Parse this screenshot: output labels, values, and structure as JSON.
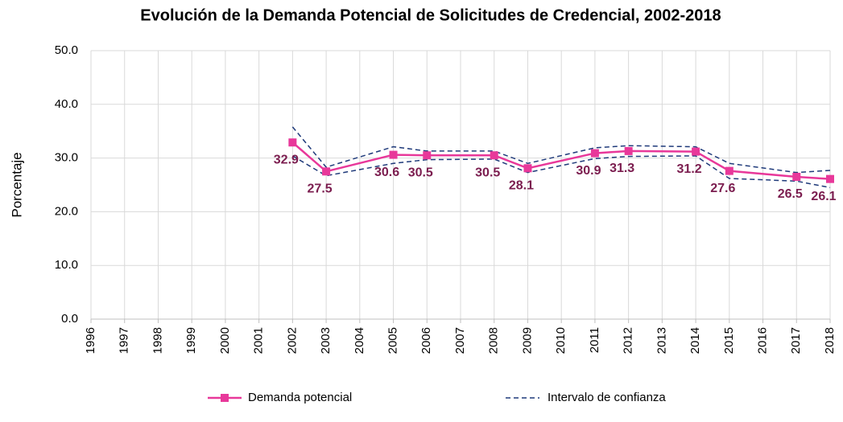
{
  "chart_data": {
    "type": "line",
    "title": "Evolución de la Demanda Potencial de Solicitudes de Credencial, 2002‐2018",
    "y_label": "Porcentaje",
    "x": [
      2002,
      2003,
      2005,
      2006,
      2008,
      2009,
      2011,
      2012,
      2014,
      2015,
      2017,
      2018
    ],
    "series": [
      {
        "name": "Demanda potencial",
        "color": "#e8389a",
        "values": [
          32.9,
          27.5,
          30.6,
          30.5,
          30.5,
          28.1,
          30.9,
          31.3,
          31.2,
          27.6,
          26.5,
          26.1
        ]
      }
    ],
    "confidence_interval": {
      "name": "Intervalo de confianza",
      "color": "#1f3a7a",
      "upper": [
        35.8,
        28.3,
        32.1,
        31.3,
        31.3,
        29.0,
        31.9,
        32.3,
        32.1,
        29.0,
        27.3,
        27.7
      ],
      "lower": [
        30.4,
        26.7,
        29.0,
        29.7,
        29.8,
        27.3,
        29.9,
        30.3,
        30.4,
        26.2,
        25.7,
        24.5
      ]
    },
    "label_color": "#7b1d4f",
    "xlim": [
      1996,
      2018
    ],
    "xticks": [
      1996,
      1997,
      1998,
      1999,
      2000,
      2001,
      2002,
      2003,
      2004,
      2005,
      2006,
      2007,
      2008,
      2009,
      2010,
      2011,
      2012,
      2013,
      2014,
      2015,
      2016,
      2017,
      2018
    ],
    "ylim": [
      0,
      50
    ],
    "yticks": [
      {
        "value": 0,
        "label": "0.0"
      },
      {
        "value": 10,
        "label": "10.0"
      },
      {
        "value": 20,
        "label": "20.0"
      },
      {
        "value": 30,
        "label": "30.0"
      },
      {
        "value": 40,
        "label": "40.0"
      },
      {
        "value": 50,
        "label": "50.0"
      }
    ],
    "grid": true,
    "legend": "bottom"
  }
}
